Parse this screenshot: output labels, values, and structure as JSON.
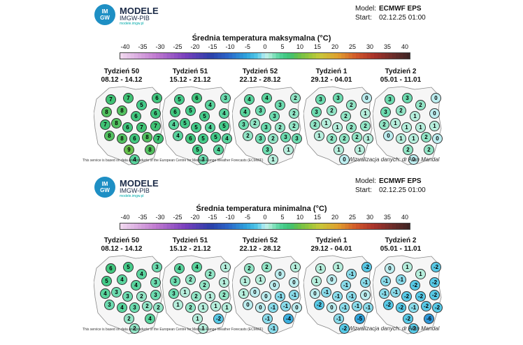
{
  "panels": [
    {
      "logo": {
        "line1": "MODELE",
        "line2": "IMGW-PIB",
        "line3": "modele.imgw.pl",
        "badge_top": "IM",
        "badge_bot": "GW"
      },
      "meta": {
        "model_label": "Model:",
        "model_value": "ECMWF EPS",
        "start_label": "Start:",
        "start_value": "02.12.25 01:00"
      },
      "footer": "This service is based on data and products of the European Centre for Medium-Range Weather Forecasts (ECMWF)",
      "author": "Wizualizacja danych: dr Alan Mandal",
      "chart_data": {
        "type": "map-point-values",
        "title": "Średnia temperatura maksymalna (°C)",
        "colorbar": {
          "ticks": [
            "-40",
            "-35",
            "-30",
            "-25",
            "-20",
            "-15",
            "-10",
            "-5",
            "0",
            "5",
            "10",
            "15",
            "20",
            "25",
            "30",
            "35",
            "40"
          ],
          "range": [
            -40,
            40
          ]
        },
        "weeks": [
          {
            "label": "Tydzień 50",
            "dates": "08.12 - 14.12",
            "values": [
              7,
              7,
              5,
              6,
              8,
              8,
              6,
              6,
              7,
              8,
              6,
              7,
              7,
              8,
              8,
              6,
              8,
              7,
              9,
              8,
              4
            ]
          },
          {
            "label": "Tydzień 51",
            "dates": "15.12 - 21.12",
            "values": [
              5,
              6,
              4,
              3,
              6,
              5,
              5,
              4,
              4,
              5,
              5,
              4,
              5,
              4,
              6,
              5,
              5,
              4,
              5,
              4,
              3
            ]
          },
          {
            "label": "Tydzień 52",
            "dates": "22.12 - 28.12",
            "values": [
              4,
              4,
              3,
              2,
              4,
              3,
              3,
              2,
              3,
              2,
              3,
              2,
              2,
              2,
              3,
              2,
              3,
              3,
              3,
              1,
              1
            ]
          },
          {
            "label": "Tydzień 1",
            "dates": "29.12 - 04.01",
            "values": [
              3,
              3,
              2,
              0,
              3,
              2,
              2,
              1,
              2,
              1,
              1,
              2,
              2,
              1,
              2,
              2,
              2,
              1,
              1,
              1,
              0
            ]
          },
          {
            "label": "Tydzień 2",
            "dates": "05.01 - 11.01",
            "values": [
              3,
              3,
              2,
              0,
              3,
              2,
              1,
              0,
              2,
              1,
              1,
              1,
              1,
              0,
              1,
              1,
              2,
              0,
              2,
              2,
              0
            ]
          }
        ]
      }
    },
    {
      "logo": {
        "line1": "MODELE",
        "line2": "IMGW-PIB",
        "line3": "modele.imgw.pl",
        "badge_top": "IM",
        "badge_bot": "GW"
      },
      "meta": {
        "model_label": "Model:",
        "model_value": "ECMWF EPS",
        "start_label": "Start:",
        "start_value": "02.12.25 01:00"
      },
      "footer": "This service is based on data and products of the European Centre for Medium-Range Weather Forecasts (ECMWF)",
      "author": "Wizualizacja danych: dr Alan Mandal",
      "chart_data": {
        "type": "map-point-values",
        "title": "Średnia temperatura minimalna (°C)",
        "colorbar": {
          "ticks": [
            "-40",
            "-35",
            "-30",
            "-25",
            "-20",
            "-15",
            "-10",
            "-5",
            "0",
            "5",
            "10",
            "15",
            "20",
            "25",
            "30",
            "35",
            "40"
          ],
          "range": [
            -40,
            40
          ]
        },
        "weeks": [
          {
            "label": "Tydzień 50",
            "dates": "08.12 - 14.12",
            "values": [
              6,
              5,
              4,
              3,
              5,
              4,
              4,
              3,
              4,
              3,
              3,
              2,
              3,
              3,
              4,
              3,
              2,
              2,
              2,
              4,
              2
            ]
          },
          {
            "label": "Tydzień 51",
            "dates": "15.12 - 21.12",
            "values": [
              4,
              4,
              2,
              1,
              3,
              2,
              2,
              1,
              3,
              1,
              2,
              1,
              2,
              1,
              2,
              1,
              1,
              1,
              1,
              -2,
              1
            ]
          },
          {
            "label": "Tydzień 52",
            "dates": "22.12 - 28.12",
            "values": [
              2,
              2,
              0,
              1,
              1,
              1,
              0,
              0,
              1,
              0,
              0,
              -1,
              -1,
              0,
              0,
              -1,
              -1,
              0,
              -1,
              -4,
              -1
            ]
          },
          {
            "label": "Tydzień 1",
            "dates": "29.12 - 04.01",
            "values": [
              1,
              1,
              -1,
              -2,
              1,
              0,
              -1,
              -1,
              0,
              -1,
              -1,
              -1,
              0,
              -2,
              0,
              -1,
              -1,
              -1,
              -1,
              -5,
              -2
            ]
          },
          {
            "label": "Tydzień 2",
            "dates": "05.01 - 11.01",
            "values": [
              0,
              1,
              1,
              -2,
              -1,
              -1,
              -2,
              -2,
              -1,
              -1,
              -2,
              -2,
              -2,
              -2,
              -2,
              -1,
              -2,
              -2,
              -2,
              -6,
              -2
            ]
          }
        ]
      }
    }
  ]
}
